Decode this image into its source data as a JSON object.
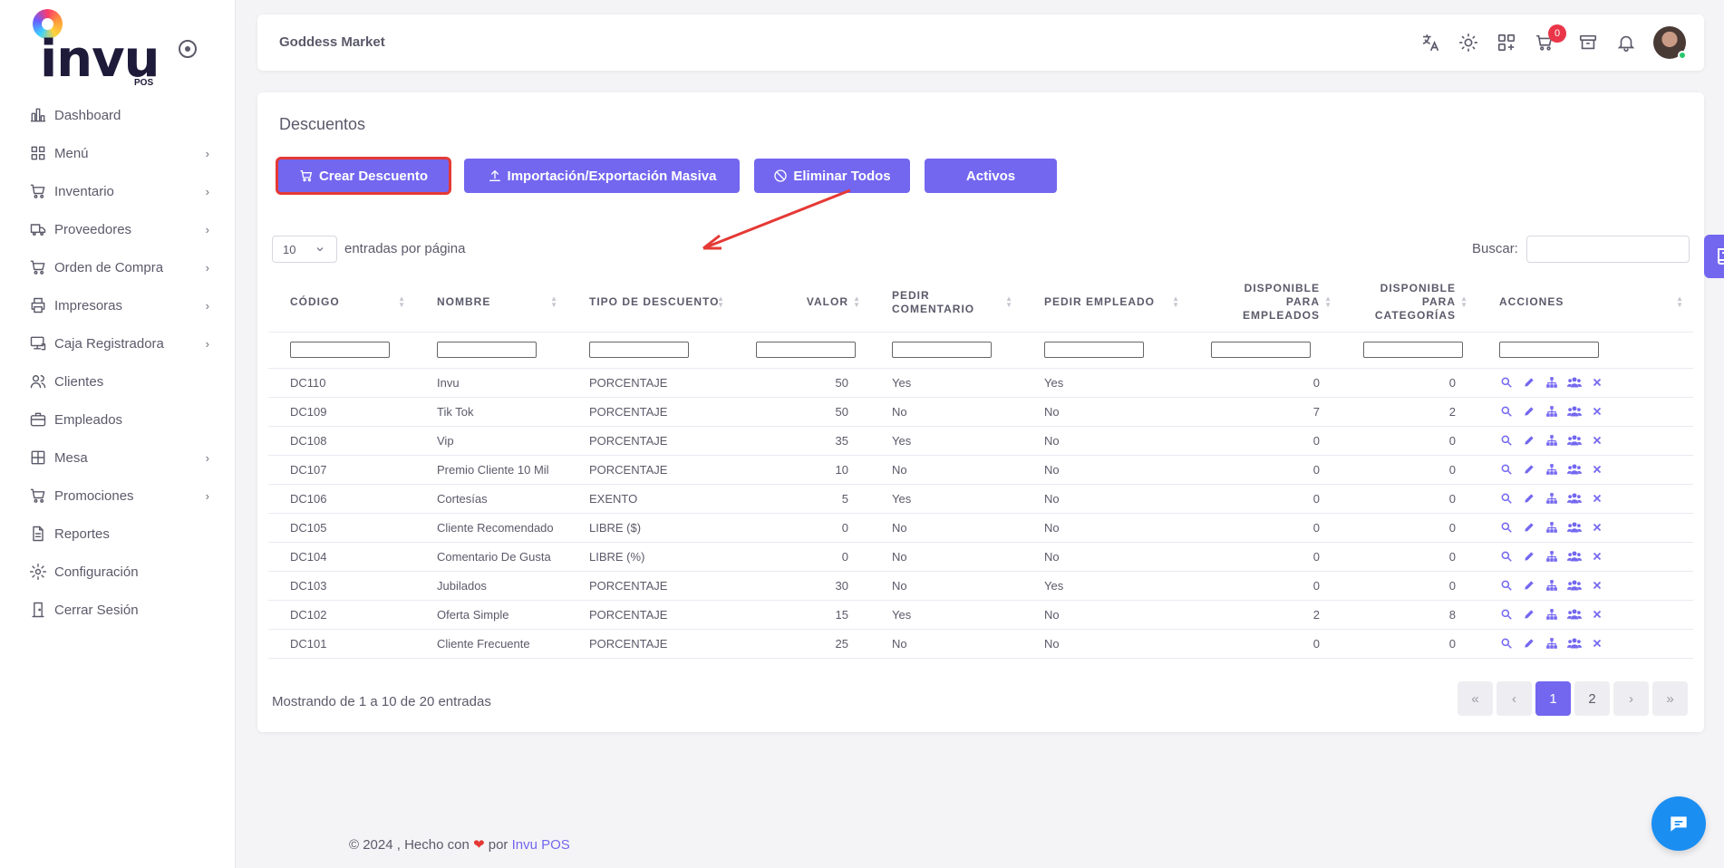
{
  "sidebar": {
    "logo_text": "invu",
    "logo_sub": "POS",
    "items": [
      {
        "label": "Dashboard",
        "icon": "chart-bar-icon",
        "has_children": false
      },
      {
        "label": "Menú",
        "icon": "grid-icon",
        "has_children": true
      },
      {
        "label": "Inventario",
        "icon": "cart-box-icon",
        "has_children": true
      },
      {
        "label": "Proveedores",
        "icon": "truck-icon",
        "has_children": true
      },
      {
        "label": "Orden de Compra",
        "icon": "cart-icon",
        "has_children": true
      },
      {
        "label": "Impresoras",
        "icon": "printer-icon",
        "has_children": true
      },
      {
        "label": "Caja Registradora",
        "icon": "register-icon",
        "has_children": true
      },
      {
        "label": "Clientes",
        "icon": "users-icon",
        "has_children": false
      },
      {
        "label": "Empleados",
        "icon": "briefcase-icon",
        "has_children": false
      },
      {
        "label": "Mesa",
        "icon": "table-icon",
        "has_children": true
      },
      {
        "label": "Promociones",
        "icon": "cart-icon",
        "has_children": true
      },
      {
        "label": "Reportes",
        "icon": "file-icon",
        "has_children": false
      },
      {
        "label": "Configuración",
        "icon": "gear-icon",
        "has_children": false
      },
      {
        "label": "Cerrar Sesión",
        "icon": "door-icon",
        "has_children": false
      }
    ]
  },
  "topbar": {
    "store_name": "Goddess Market",
    "cart_count": "0"
  },
  "page": {
    "title": "Descuentos",
    "buttons": {
      "create": "Crear Descuento",
      "import": "Importación/Exportación Masiva",
      "delete_all": "Eliminar Todos",
      "active": "Activos"
    },
    "entries_value": "10",
    "entries_label": "entradas por página",
    "search_label": "Buscar:",
    "search_value": ""
  },
  "table": {
    "headers": [
      "Código",
      "Nombre",
      "Tipo de Descuento",
      "Valor",
      "Pedir Comentario",
      "Pedir Empleado",
      "Disponible para Empleados",
      "Disponible para Categorías",
      "Acciones"
    ],
    "rows": [
      [
        "DC110",
        "Invu",
        "PORCENTAJE",
        "50",
        "Yes",
        "Yes",
        "0",
        "0"
      ],
      [
        "DC109",
        "Tik Tok",
        "PORCENTAJE",
        "50",
        "No",
        "No",
        "7",
        "2"
      ],
      [
        "DC108",
        "Vip",
        "PORCENTAJE",
        "35",
        "Yes",
        "No",
        "0",
        "0"
      ],
      [
        "DC107",
        "Premio Cliente 10 Mil",
        "PORCENTAJE",
        "10",
        "No",
        "No",
        "0",
        "0"
      ],
      [
        "DC106",
        "Cortesías",
        "EXENTO",
        "5",
        "Yes",
        "No",
        "0",
        "0"
      ],
      [
        "DC105",
        "Cliente Recomendado",
        "LIBRE ($)",
        "0",
        "No",
        "No",
        "0",
        "0"
      ],
      [
        "DC104",
        "Comentario De Gusta",
        "LIBRE (%)",
        "0",
        "No",
        "No",
        "0",
        "0"
      ],
      [
        "DC103",
        "Jubilados",
        "PORCENTAJE",
        "30",
        "No",
        "Yes",
        "0",
        "0"
      ],
      [
        "DC102",
        "Oferta Simple",
        "PORCENTAJE",
        "15",
        "Yes",
        "No",
        "2",
        "8"
      ],
      [
        "DC101",
        "Cliente Frecuente",
        "PORCENTAJE",
        "25",
        "No",
        "No",
        "0",
        "0"
      ]
    ]
  },
  "footer_table": {
    "info": "Mostrando de 1 a 10 de 20 entradas",
    "pages": [
      "«",
      "‹",
      "1",
      "2",
      "›",
      "»"
    ],
    "current_page": "1"
  },
  "footer": {
    "text": "© 2024 , Hecho con",
    "by": "por",
    "brand": "Invu POS"
  },
  "colors": {
    "primary": "#7367f0",
    "highlight": "#e53935",
    "badge": "#ea3548",
    "chat": "#1b8ef2"
  }
}
